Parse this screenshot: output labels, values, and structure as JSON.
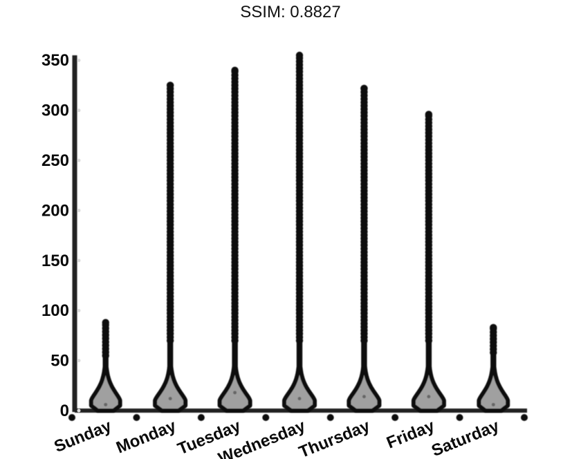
{
  "title": "SSIM: 0.8827",
  "chart_data": {
    "type": "violin",
    "title": "SSIM: 0.8827",
    "categories": [
      "Sunday",
      "Monday",
      "Tuesday",
      "Wednesday",
      "Thursday",
      "Friday",
      "Saturday"
    ],
    "y_ticks": [
      0,
      50,
      100,
      150,
      200,
      250,
      300,
      350
    ],
    "ylim": [
      0,
      355
    ],
    "grid": false,
    "legend": "none",
    "series": [
      {
        "max": 88,
        "peak_density": 0.95,
        "median": 6,
        "outlier_start": 55
      },
      {
        "max": 325,
        "peak_density": 1.0,
        "median": 12,
        "outlier_start": 70
      },
      {
        "max": 340,
        "peak_density": 1.0,
        "median": 18,
        "outlier_start": 70
      },
      {
        "max": 355,
        "peak_density": 1.0,
        "median": 12,
        "outlier_start": 70
      },
      {
        "max": 322,
        "peak_density": 1.0,
        "median": 14,
        "outlier_start": 70
      },
      {
        "max": 296,
        "peak_density": 1.0,
        "median": 14,
        "outlier_start": 70
      },
      {
        "max": 83,
        "peak_density": 0.95,
        "median": 6,
        "outlier_start": 58
      }
    ],
    "colors": {
      "ink": "#0b0b0b",
      "violin_fill": "#a0a0a0",
      "axis": "#222222"
    }
  }
}
